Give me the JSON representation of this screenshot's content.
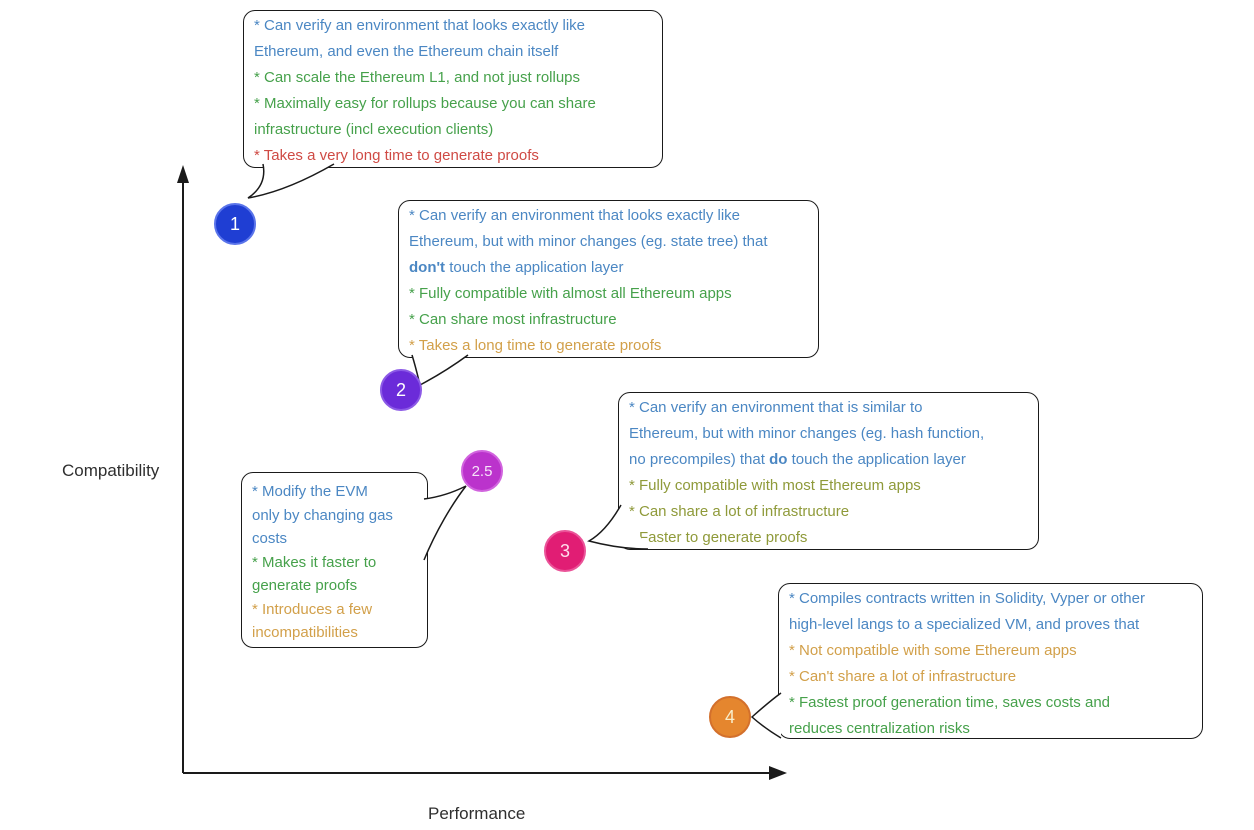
{
  "colors": {
    "blue": "#4b87c3",
    "green": "#46a14b",
    "red": "#cf4a44",
    "orange": "#d2a04a",
    "olive": "#8f9a3a",
    "axis_text": "#2f2f2f",
    "line": "#1a1a1a"
  },
  "axes": {
    "y_label": "Compatibility",
    "x_label": "Performance"
  },
  "circles": [
    {
      "label": "1",
      "fill": "#1f3ed3",
      "border": "#5a74ea",
      "text_color": "#ffffff"
    },
    {
      "label": "2",
      "fill": "#6b2bd9",
      "border": "#8c5ae6",
      "text_color": "#ffffff"
    },
    {
      "label": "2.5",
      "fill": "#bb33cc",
      "border": "#d163de",
      "text_color": "#f6e3f8"
    },
    {
      "label": "3",
      "fill": "#e11d74",
      "border": "#ea5398",
      "text_color": "#ffddec"
    },
    {
      "label": "4",
      "fill": "#e5862e",
      "border": "#d3702c",
      "text_color": "#f8eecb"
    }
  ],
  "bubbles": [
    {
      "type": "1",
      "items": [
        {
          "color": "blue",
          "segments": [
            {
              "t": "* Can verify an environment that looks exactly like\nEthereum, and even the Ethereum chain itself"
            }
          ]
        },
        {
          "color": "green",
          "segments": [
            {
              "t": "* Can scale the Ethereum L1, and not just rollups"
            }
          ]
        },
        {
          "color": "green",
          "segments": [
            {
              "t": "* Maximally easy for rollups because you can share\ninfrastructure (incl execution clients)"
            }
          ]
        },
        {
          "color": "red",
          "segments": [
            {
              "t": "* Takes a very long time to generate proofs"
            }
          ]
        }
      ]
    },
    {
      "type": "2",
      "items": [
        {
          "color": "blue",
          "segments": [
            {
              "t": "* Can verify an environment that looks exactly like\nEthereum, but with minor changes (eg. state tree) that\n"
            },
            {
              "t": "don't",
              "b": true
            },
            {
              "t": " touch the application layer"
            }
          ]
        },
        {
          "color": "green",
          "segments": [
            {
              "t": "* Fully compatible with almost all Ethereum apps"
            }
          ]
        },
        {
          "color": "green",
          "segments": [
            {
              "t": "* Can share most infrastructure"
            }
          ]
        },
        {
          "color": "orange",
          "segments": [
            {
              "t": "* Takes a long time to generate proofs"
            }
          ]
        }
      ]
    },
    {
      "type": "3",
      "items": [
        {
          "color": "blue",
          "segments": [
            {
              "t": "* Can verify an environment that is similar to\nEthereum, but with minor changes (eg. hash function,\nno precompiles) that "
            },
            {
              "t": "do",
              "b": true
            },
            {
              "t": " touch the application layer"
            }
          ]
        },
        {
          "color": "olive",
          "segments": [
            {
              "t": "* Fully compatible with most Ethereum apps"
            }
          ]
        },
        {
          "color": "olive",
          "segments": [
            {
              "t": "* Can share a lot of infrastructure"
            }
          ]
        },
        {
          "color": "olive",
          "segments": [
            {
              "t": "* Faster to generate proofs"
            }
          ]
        }
      ]
    },
    {
      "type": "2.5",
      "items": [
        {
          "color": "blue",
          "segments": [
            {
              "t": "* Modify the EVM\nonly by changing gas\ncosts"
            }
          ]
        },
        {
          "color": "green",
          "segments": [
            {
              "t": "* Makes it faster to\ngenerate proofs"
            }
          ]
        },
        {
          "color": "orange",
          "segments": [
            {
              "t": "* Introduces a few\nincompatibilities"
            }
          ]
        }
      ]
    },
    {
      "type": "4",
      "items": [
        {
          "color": "blue",
          "segments": [
            {
              "t": "* Compiles contracts written in Solidity, Vyper or other\nhigh-level langs to a specialized VM, and proves that"
            }
          ]
        },
        {
          "color": "orange",
          "segments": [
            {
              "t": "* Not compatible with some Ethereum apps"
            }
          ]
        },
        {
          "color": "orange",
          "segments": [
            {
              "t": "* Can't share a lot of infrastructure"
            }
          ]
        },
        {
          "color": "green",
          "segments": [
            {
              "t": "* Fastest proof generation time, saves costs and\nreduces centralization risks"
            }
          ]
        }
      ]
    }
  ]
}
